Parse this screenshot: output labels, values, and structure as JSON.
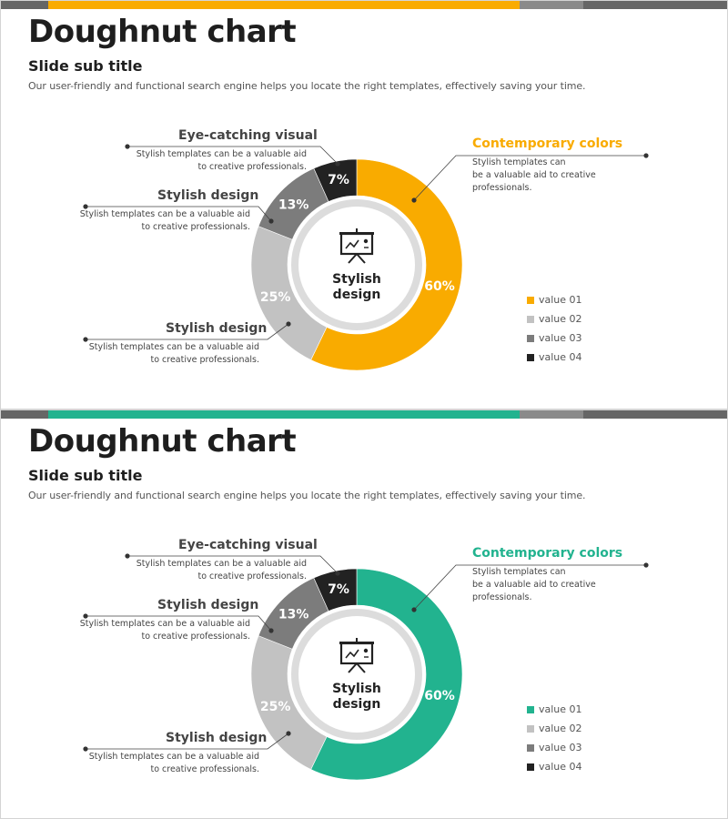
{
  "slides": [
    {
      "title": "Doughnut chart",
      "subtitle": "Slide sub title",
      "description": "Our user-friendly and functional search engine helps you locate the right templates, effectively saving your time.",
      "accent_color": "#f9ab00",
      "center_label_line1": "Stylish",
      "center_label_line2": "design",
      "center_icon": "presentation-board-icon",
      "callouts": {
        "contemporary": {
          "title": "Contemporary colors",
          "line1": "Stylish templates can",
          "line2": "be a valuable aid to creative",
          "line3": "professionals."
        },
        "eye_catching": {
          "title": "Eye-catching visual",
          "line1": "Stylish templates can be a valuable aid",
          "line2": "to creative professionals."
        },
        "stylish_upper": {
          "title": "Stylish design",
          "line1": "Stylish templates can be a valuable aid",
          "line2": "to creative professionals."
        },
        "stylish_lower": {
          "title": "Stylish design",
          "line1": "Stylish templates can be a valuable aid",
          "line2": "to creative professionals."
        }
      },
      "chart_data": {
        "type": "pie",
        "variant": "doughnut",
        "categories": [
          "value 01",
          "value 02",
          "value 03",
          "value 04"
        ],
        "values": [
          60,
          25,
          13,
          7
        ],
        "data_labels": [
          "60%",
          "25%",
          "13%",
          "7%"
        ],
        "colors": [
          "#f9ab00",
          "#c2c2c2",
          "#7c7c7c",
          "#222222"
        ],
        "legend": "right"
      }
    },
    {
      "title": "Doughnut chart",
      "subtitle": "Slide sub title",
      "description": "Our user-friendly and functional search engine helps you locate the right templates, effectively saving your time.",
      "accent_color": "#22b38f",
      "center_label_line1": "Stylish",
      "center_label_line2": "design",
      "center_icon": "presentation-board-icon",
      "callouts": {
        "contemporary": {
          "title": "Contemporary colors",
          "line1": "Stylish templates can",
          "line2": "be a valuable aid to creative",
          "line3": "professionals."
        },
        "eye_catching": {
          "title": "Eye-catching visual",
          "line1": "Stylish templates can be a valuable aid",
          "line2": "to creative professionals."
        },
        "stylish_upper": {
          "title": "Stylish design",
          "line1": "Stylish templates can be a valuable aid",
          "line2": "to creative professionals."
        },
        "stylish_lower": {
          "title": "Stylish design",
          "line1": "Stylish templates can be a valuable aid",
          "line2": "to creative professionals."
        }
      },
      "chart_data": {
        "type": "pie",
        "variant": "doughnut",
        "categories": [
          "value 01",
          "value 02",
          "value 03",
          "value 04"
        ],
        "values": [
          60,
          25,
          13,
          7
        ],
        "data_labels": [
          "60%",
          "25%",
          "13%",
          "7%"
        ],
        "colors": [
          "#22b38f",
          "#c2c2c2",
          "#7c7c7c",
          "#222222"
        ],
        "legend": "right"
      }
    }
  ]
}
